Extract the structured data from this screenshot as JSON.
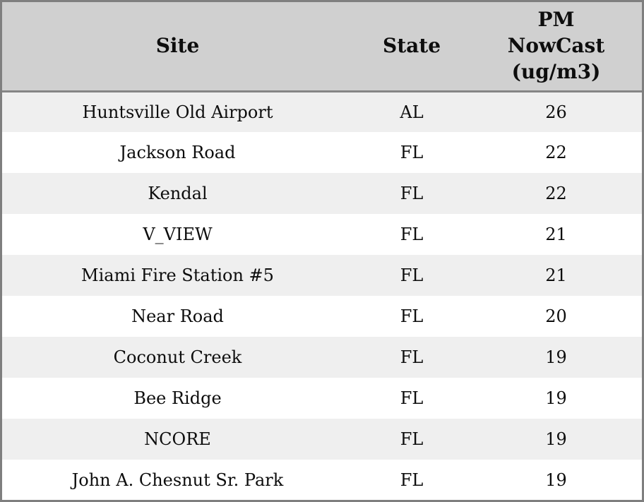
{
  "chart_data": {
    "type": "table",
    "columns": [
      "Site",
      "State",
      "PM NowCast (ug/m3)"
    ],
    "rows": [
      {
        "site": "Huntsville Old Airport",
        "state": "AL",
        "pm_nowcast": 26
      },
      {
        "site": "Jackson Road",
        "state": "FL",
        "pm_nowcast": 22
      },
      {
        "site": "Kendal",
        "state": "FL",
        "pm_nowcast": 22
      },
      {
        "site": "V_VIEW",
        "state": "FL",
        "pm_nowcast": 21
      },
      {
        "site": "Miami Fire Station #5",
        "state": "FL",
        "pm_nowcast": 21
      },
      {
        "site": "Near Road",
        "state": "FL",
        "pm_nowcast": 20
      },
      {
        "site": "Coconut Creek",
        "state": "FL",
        "pm_nowcast": 19
      },
      {
        "site": "Bee Ridge",
        "state": "FL",
        "pm_nowcast": 19
      },
      {
        "site": "NCORE",
        "state": "FL",
        "pm_nowcast": 19
      },
      {
        "site": "John A. Chesnut Sr. Park",
        "state": "FL",
        "pm_nowcast": 19
      }
    ]
  },
  "header": {
    "site_label": "Site",
    "state_label": "State",
    "pm_label": "PM NowCast (ug/m3)"
  },
  "colors": {
    "header_bg": "#d0d0d0",
    "header_separator": "#858585",
    "outer_border": "#7f7f7f",
    "row_stripe_bg": "#efefef",
    "row_bg": "#ffffff",
    "text": "#0d0d0d"
  }
}
